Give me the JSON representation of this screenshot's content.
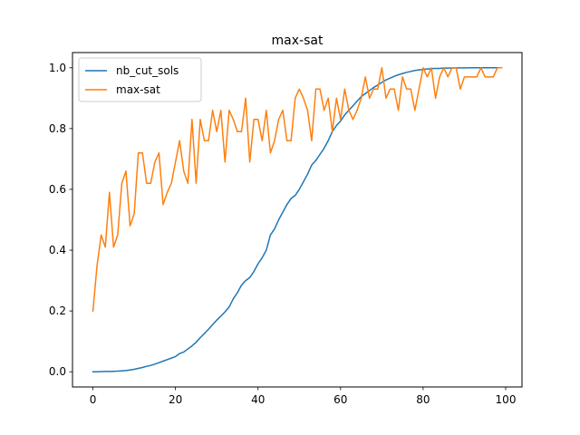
{
  "chart_data": {
    "type": "line",
    "title": "max-sat",
    "xlabel": "",
    "ylabel": "",
    "xlim": [
      -4.95,
      103.95
    ],
    "ylim": [
      -0.05,
      1.05
    ],
    "x_ticks": [
      0,
      20,
      40,
      60,
      80,
      100
    ],
    "y_ticks": [
      0.0,
      0.2,
      0.4,
      0.6,
      0.8,
      1.0
    ],
    "x_tick_labels": [
      "0",
      "20",
      "40",
      "60",
      "80",
      "100"
    ],
    "y_tick_labels": [
      "0.0",
      "0.2",
      "0.4",
      "0.6",
      "0.8",
      "1.0"
    ],
    "grid": false,
    "legend_position": "top-left",
    "series": [
      {
        "name": "nb_cut_sols",
        "color": "#1f77b4",
        "x": [
          0,
          1,
          2,
          3,
          4,
          5,
          6,
          7,
          8,
          9,
          10,
          11,
          12,
          13,
          14,
          15,
          16,
          17,
          18,
          19,
          20,
          21,
          22,
          23,
          24,
          25,
          26,
          27,
          28,
          29,
          30,
          31,
          32,
          33,
          34,
          35,
          36,
          37,
          38,
          39,
          40,
          41,
          42,
          43,
          44,
          45,
          46,
          47,
          48,
          49,
          50,
          51,
          52,
          53,
          54,
          55,
          56,
          57,
          58,
          59,
          60,
          61,
          62,
          63,
          64,
          65,
          66,
          67,
          68,
          69,
          70,
          71,
          72,
          73,
          74,
          75,
          76,
          77,
          78,
          79,
          80,
          81,
          82,
          83,
          84,
          85,
          86,
          87,
          88,
          89,
          90,
          91,
          92,
          93,
          94,
          95,
          96,
          97,
          98,
          99
        ],
        "y": [
          0.0,
          0.0,
          0.0005,
          0.001,
          0.001,
          0.0015,
          0.002,
          0.003,
          0.004,
          0.006,
          0.008,
          0.011,
          0.014,
          0.018,
          0.021,
          0.025,
          0.03,
          0.035,
          0.04,
          0.045,
          0.05,
          0.06,
          0.065,
          0.075,
          0.085,
          0.097,
          0.112,
          0.126,
          0.14,
          0.155,
          0.17,
          0.183,
          0.197,
          0.213,
          0.24,
          0.26,
          0.285,
          0.3,
          0.31,
          0.33,
          0.355,
          0.375,
          0.4,
          0.45,
          0.47,
          0.5,
          0.525,
          0.55,
          0.57,
          0.58,
          0.6,
          0.625,
          0.65,
          0.68,
          0.695,
          0.715,
          0.735,
          0.76,
          0.79,
          0.81,
          0.825,
          0.845,
          0.86,
          0.875,
          0.89,
          0.905,
          0.915,
          0.925,
          0.935,
          0.943,
          0.952,
          0.96,
          0.966,
          0.972,
          0.977,
          0.981,
          0.985,
          0.988,
          0.991,
          0.993,
          0.995,
          0.996,
          0.997,
          0.998,
          0.998,
          0.999,
          0.999,
          0.9995,
          0.9995,
          0.9997,
          0.9998,
          0.9998,
          0.9999,
          0.9999,
          0.9999,
          1.0,
          1.0,
          1.0,
          1.0,
          1.0
        ]
      },
      {
        "name": "max-sat",
        "color": "#ff7f0e",
        "x": [
          0,
          1,
          2,
          3,
          4,
          5,
          6,
          7,
          8,
          9,
          10,
          11,
          12,
          13,
          14,
          15,
          16,
          17,
          18,
          19,
          20,
          21,
          22,
          23,
          24,
          25,
          26,
          27,
          28,
          29,
          30,
          31,
          32,
          33,
          34,
          35,
          36,
          37,
          38,
          39,
          40,
          41,
          42,
          43,
          44,
          45,
          46,
          47,
          48,
          49,
          50,
          51,
          52,
          53,
          54,
          55,
          56,
          57,
          58,
          59,
          60,
          61,
          62,
          63,
          64,
          65,
          66,
          67,
          68,
          69,
          70,
          71,
          72,
          73,
          74,
          75,
          76,
          77,
          78,
          79,
          80,
          81,
          82,
          83,
          84,
          85,
          86,
          87,
          88,
          89,
          90,
          91,
          92,
          93,
          94,
          95,
          96,
          97,
          98,
          99
        ],
        "y": [
          0.2,
          0.35,
          0.45,
          0.41,
          0.59,
          0.41,
          0.45,
          0.62,
          0.66,
          0.48,
          0.52,
          0.72,
          0.72,
          0.62,
          0.62,
          0.69,
          0.72,
          0.55,
          0.59,
          0.62,
          0.69,
          0.76,
          0.66,
          0.62,
          0.83,
          0.62,
          0.83,
          0.76,
          0.76,
          0.86,
          0.79,
          0.86,
          0.69,
          0.86,
          0.83,
          0.79,
          0.79,
          0.9,
          0.69,
          0.83,
          0.83,
          0.76,
          0.86,
          0.72,
          0.76,
          0.83,
          0.86,
          0.76,
          0.76,
          0.9,
          0.93,
          0.9,
          0.86,
          0.76,
          0.93,
          0.93,
          0.86,
          0.9,
          0.79,
          0.9,
          0.83,
          0.93,
          0.86,
          0.83,
          0.86,
          0.9,
          0.97,
          0.9,
          0.93,
          0.93,
          1.0,
          0.9,
          0.93,
          0.93,
          0.86,
          0.97,
          0.93,
          0.93,
          0.86,
          0.93,
          1.0,
          0.97,
          1.0,
          0.9,
          0.97,
          1.0,
          0.97,
          1.0,
          1.0,
          0.93,
          0.97,
          0.97,
          0.97,
          0.97,
          1.0,
          0.97,
          0.97,
          0.97,
          1.0,
          1.0
        ]
      }
    ]
  }
}
